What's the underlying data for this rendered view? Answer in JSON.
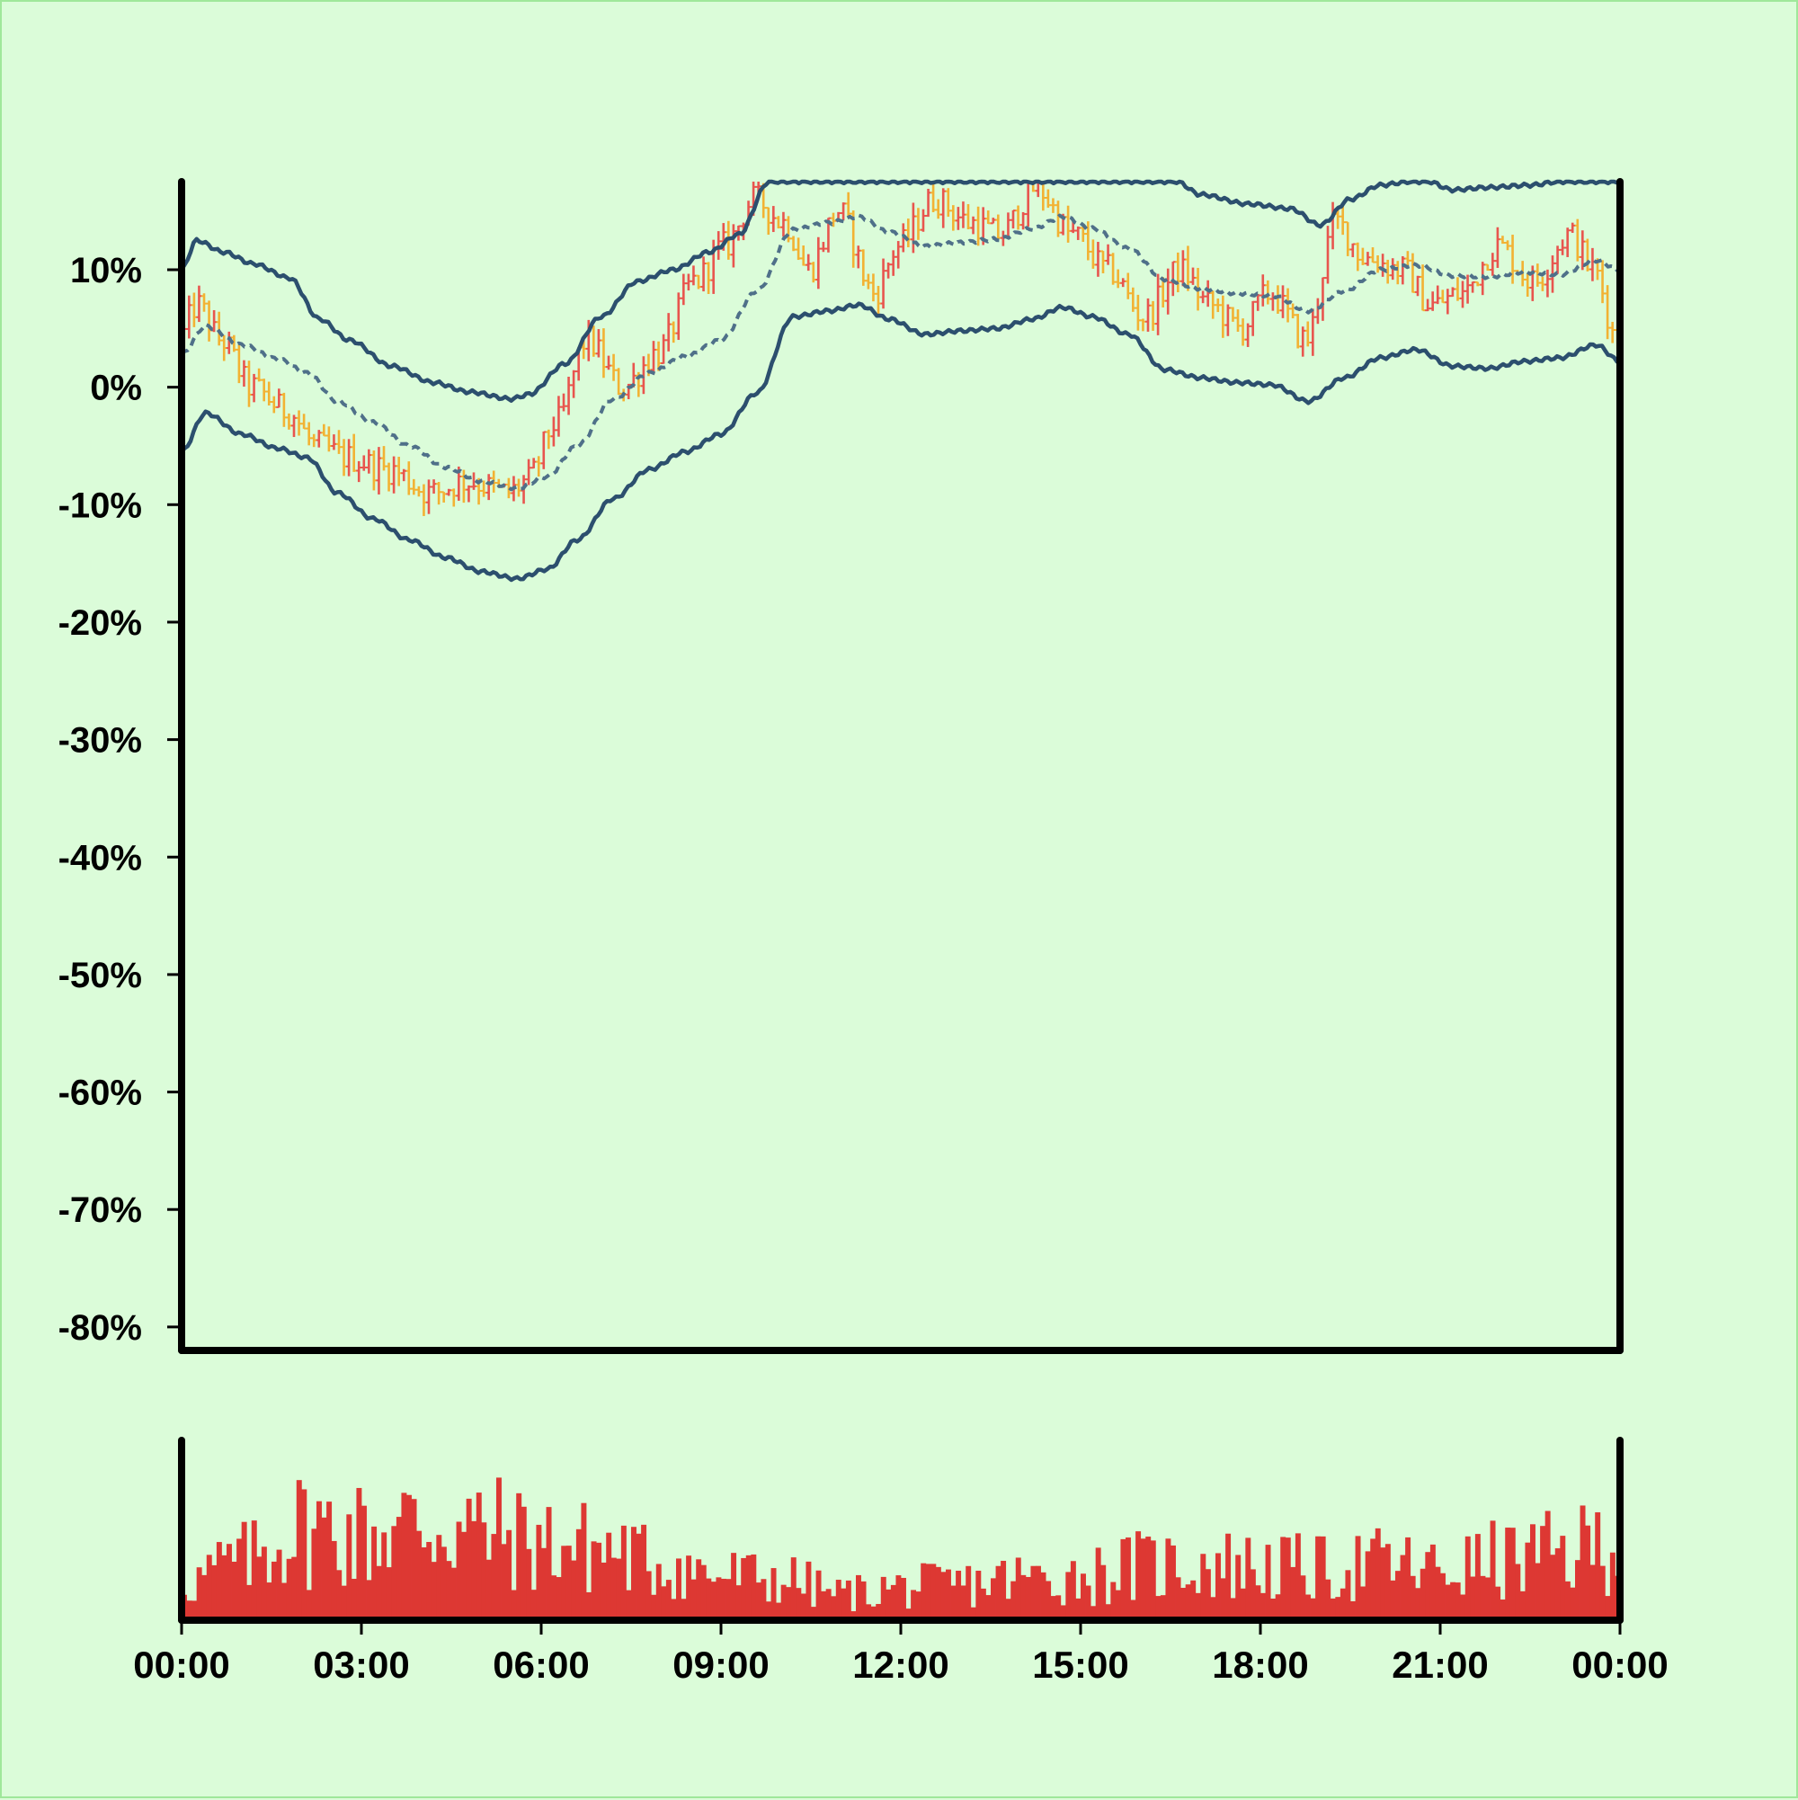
{
  "colors": {
    "background": "#dbfcd9",
    "axis": "#000000",
    "up": "#e8554e",
    "down": "#f2b233",
    "band": "#2c4f6e",
    "middle": "#4f7089",
    "volume": "#dd3833"
  },
  "chart_data": [
    {
      "type": "ohlc",
      "title": "",
      "xlabel": "",
      "ylabel": "",
      "ylim": [
        -0.82,
        0.175
      ],
      "y_ticks": [
        "10%",
        "0%",
        "-10%",
        "-20%",
        "-30%",
        "-40%",
        "-50%",
        "-60%",
        "-70%",
        "-80%"
      ],
      "y_tick_values": [
        0.1,
        0.0,
        -0.1,
        -0.2,
        -0.3,
        -0.4,
        -0.5,
        -0.6,
        -0.7,
        -0.8
      ],
      "x_range_hours": [
        0,
        24
      ],
      "bar_interval_minutes": 5,
      "price_anchor_points": [
        [
          0.0,
          0.04
        ],
        [
          0.3,
          0.07
        ],
        [
          0.7,
          0.04
        ],
        [
          1.2,
          0.0
        ],
        [
          1.8,
          -0.02
        ],
        [
          2.3,
          -0.05
        ],
        [
          2.8,
          -0.06
        ],
        [
          3.5,
          -0.07
        ],
        [
          4.2,
          -0.09
        ],
        [
          4.8,
          -0.08
        ],
        [
          5.5,
          -0.09
        ],
        [
          5.8,
          -0.08
        ],
        [
          6.3,
          -0.03
        ],
        [
          6.8,
          0.04
        ],
        [
          7.4,
          0.0
        ],
        [
          8.0,
          0.03
        ],
        [
          8.6,
          0.09
        ],
        [
          9.1,
          0.12
        ],
        [
          9.6,
          0.16
        ],
        [
          10.1,
          0.14
        ],
        [
          10.5,
          0.1
        ],
        [
          11.0,
          0.15
        ],
        [
          11.6,
          0.08
        ],
        [
          12.0,
          0.12
        ],
        [
          12.6,
          0.16
        ],
        [
          13.2,
          0.14
        ],
        [
          13.7,
          0.13
        ],
        [
          14.3,
          0.17
        ],
        [
          14.9,
          0.13
        ],
        [
          15.5,
          0.1
        ],
        [
          16.1,
          0.06
        ],
        [
          16.7,
          0.1
        ],
        [
          17.2,
          0.07
        ],
        [
          17.7,
          0.05
        ],
        [
          18.2,
          0.08
        ],
        [
          18.8,
          0.04
        ],
        [
          19.3,
          0.14
        ],
        [
          19.8,
          0.11
        ],
        [
          20.4,
          0.1
        ],
        [
          20.9,
          0.07
        ],
        [
          21.4,
          0.08
        ],
        [
          22.0,
          0.12
        ],
        [
          22.6,
          0.09
        ],
        [
          23.2,
          0.13
        ],
        [
          23.6,
          0.1
        ],
        [
          24.0,
          0.04
        ]
      ],
      "upper_band_points": [
        [
          0.0,
          0.1
        ],
        [
          0.25,
          0.125
        ],
        [
          0.7,
          0.115
        ],
        [
          1.2,
          0.105
        ],
        [
          1.8,
          0.093
        ],
        [
          2.3,
          0.058
        ],
        [
          2.8,
          0.04
        ],
        [
          3.5,
          0.018
        ],
        [
          4.2,
          0.004
        ],
        [
          4.8,
          -0.004
        ],
        [
          5.5,
          -0.01
        ],
        [
          5.8,
          -0.006
        ],
        [
          6.4,
          0.02
        ],
        [
          7.0,
          0.06
        ],
        [
          7.6,
          0.09
        ],
        [
          8.2,
          0.1
        ],
        [
          8.8,
          0.115
        ],
        [
          9.3,
          0.13
        ],
        [
          9.8,
          0.175
        ],
        [
          16.6,
          0.175
        ],
        [
          17.0,
          0.164
        ],
        [
          17.8,
          0.156
        ],
        [
          18.5,
          0.152
        ],
        [
          19.0,
          0.138
        ],
        [
          19.5,
          0.16
        ],
        [
          20.0,
          0.172
        ],
        [
          20.5,
          0.175
        ],
        [
          20.8,
          0.175
        ],
        [
          21.2,
          0.168
        ],
        [
          21.8,
          0.17
        ],
        [
          22.5,
          0.172
        ],
        [
          23.0,
          0.175
        ],
        [
          24.0,
          0.175
        ]
      ],
      "middle_band_points": [
        [
          0.0,
          0.028
        ],
        [
          0.4,
          0.052
        ],
        [
          1.0,
          0.036
        ],
        [
          1.6,
          0.024
        ],
        [
          2.1,
          0.012
        ],
        [
          2.6,
          -0.012
        ],
        [
          3.2,
          -0.03
        ],
        [
          3.8,
          -0.05
        ],
        [
          4.4,
          -0.068
        ],
        [
          5.0,
          -0.08
        ],
        [
          5.6,
          -0.086
        ],
        [
          6.1,
          -0.076
        ],
        [
          6.6,
          -0.05
        ],
        [
          7.2,
          -0.01
        ],
        [
          7.8,
          0.012
        ],
        [
          8.4,
          0.026
        ],
        [
          9.0,
          0.04
        ],
        [
          9.6,
          0.082
        ],
        [
          10.2,
          0.134
        ],
        [
          10.8,
          0.14
        ],
        [
          11.3,
          0.145
        ],
        [
          11.8,
          0.132
        ],
        [
          12.4,
          0.12
        ],
        [
          13.0,
          0.123
        ],
        [
          13.6,
          0.126
        ],
        [
          14.2,
          0.135
        ],
        [
          14.7,
          0.145
        ],
        [
          15.2,
          0.135
        ],
        [
          15.8,
          0.118
        ],
        [
          16.4,
          0.092
        ],
        [
          17.0,
          0.084
        ],
        [
          17.6,
          0.08
        ],
        [
          18.2,
          0.078
        ],
        [
          18.8,
          0.065
        ],
        [
          19.4,
          0.082
        ],
        [
          20.0,
          0.1
        ],
        [
          20.6,
          0.104
        ],
        [
          21.2,
          0.095
        ],
        [
          21.8,
          0.094
        ],
        [
          22.4,
          0.098
        ],
        [
          23.0,
          0.096
        ],
        [
          23.6,
          0.108
        ],
        [
          24.0,
          0.1
        ]
      ],
      "lower_band_points": [
        [
          0.0,
          -0.055
        ],
        [
          0.4,
          -0.022
        ],
        [
          1.0,
          -0.04
        ],
        [
          1.6,
          -0.052
        ],
        [
          2.1,
          -0.06
        ],
        [
          2.6,
          -0.09
        ],
        [
          3.2,
          -0.112
        ],
        [
          3.8,
          -0.13
        ],
        [
          4.4,
          -0.145
        ],
        [
          5.0,
          -0.157
        ],
        [
          5.6,
          -0.163
        ],
        [
          6.1,
          -0.155
        ],
        [
          6.6,
          -0.13
        ],
        [
          7.2,
          -0.095
        ],
        [
          7.8,
          -0.07
        ],
        [
          8.4,
          -0.055
        ],
        [
          9.0,
          -0.04
        ],
        [
          9.6,
          -0.005
        ],
        [
          10.2,
          0.06
        ],
        [
          10.8,
          0.065
        ],
        [
          11.3,
          0.07
        ],
        [
          11.8,
          0.058
        ],
        [
          12.4,
          0.045
        ],
        [
          13.0,
          0.048
        ],
        [
          13.6,
          0.05
        ],
        [
          14.2,
          0.058
        ],
        [
          14.7,
          0.068
        ],
        [
          15.2,
          0.06
        ],
        [
          15.8,
          0.045
        ],
        [
          16.4,
          0.015
        ],
        [
          17.0,
          0.008
        ],
        [
          17.6,
          0.004
        ],
        [
          18.2,
          0.002
        ],
        [
          18.8,
          -0.012
        ],
        [
          19.4,
          0.008
        ],
        [
          20.0,
          0.025
        ],
        [
          20.6,
          0.032
        ],
        [
          21.2,
          0.018
        ],
        [
          21.8,
          0.016
        ],
        [
          22.4,
          0.022
        ],
        [
          23.0,
          0.025
        ],
        [
          23.6,
          0.036
        ],
        [
          24.0,
          0.022
        ]
      ]
    },
    {
      "type": "bar",
      "title": "",
      "x_ticks": [
        "00:00",
        "03:00",
        "06:00",
        "09:00",
        "12:00",
        "15:00",
        "18:00",
        "21:00",
        "00:00"
      ],
      "x_tick_hours": [
        0,
        3,
        6,
        9,
        12,
        15,
        18,
        21,
        24
      ],
      "volume_envelope_points": [
        [
          0.0,
          0.25
        ],
        [
          1.0,
          0.4
        ],
        [
          2.0,
          0.62
        ],
        [
          3.0,
          0.58
        ],
        [
          4.0,
          0.65
        ],
        [
          5.0,
          0.6
        ],
        [
          6.0,
          0.52
        ],
        [
          7.0,
          0.48
        ],
        [
          8.0,
          0.38
        ],
        [
          9.0,
          0.3
        ],
        [
          10.0,
          0.28
        ],
        [
          11.0,
          0.18
        ],
        [
          12.0,
          0.22
        ],
        [
          13.0,
          0.24
        ],
        [
          14.0,
          0.28
        ],
        [
          15.0,
          0.3
        ],
        [
          16.0,
          0.36
        ],
        [
          17.0,
          0.38
        ],
        [
          18.0,
          0.36
        ],
        [
          19.0,
          0.34
        ],
        [
          20.0,
          0.38
        ],
        [
          21.0,
          0.33
        ],
        [
          22.0,
          0.4
        ],
        [
          23.0,
          0.44
        ],
        [
          24.0,
          0.55
        ]
      ],
      "volume_ylim": [
        0,
        1
      ]
    }
  ]
}
